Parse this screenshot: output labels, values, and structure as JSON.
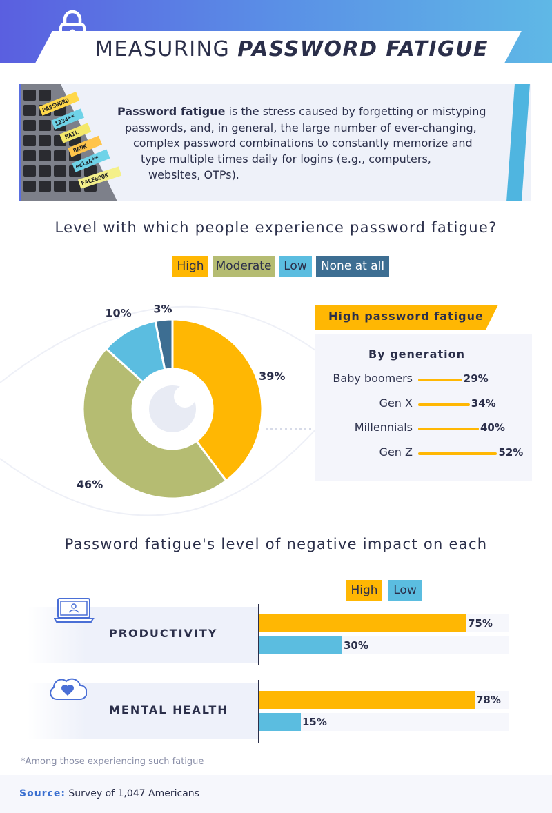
{
  "header": {
    "title_light": "MEASURING ",
    "title_bold": "PASSWORD FATIGUE"
  },
  "definition": {
    "term": "Password fatigue",
    "lines": [
      " is the stress caused by forgetting or mistyping",
      "passwords, and, in general, the large number of ever-changing,",
      "complex password combinations to constantly memorize and",
      "type multiple times daily for logins (e.g., computers,",
      "websites, OTPs)."
    ],
    "sticky_notes": [
      "PASSWORD",
      "1234**",
      "MAIL",
      "BANK",
      "eclx&**",
      "FACEBOOK"
    ]
  },
  "chart_data": [
    {
      "type": "pie",
      "title": "Level with which people experience password fatigue?",
      "categories": [
        "High",
        "Moderate",
        "Low",
        "None at all"
      ],
      "values": [
        39,
        46,
        10,
        3
      ],
      "value_labels": [
        "39%",
        "46%",
        "10%",
        "3%"
      ],
      "colors": [
        "#ffb703",
        "#b5bc72",
        "#5bbde0",
        "#3d6e92"
      ],
      "legend_placement": "top"
    },
    {
      "type": "bar",
      "title": "High password fatigue",
      "subtitle": "By generation",
      "categories": [
        "Baby boomers",
        "Gen X",
        "Millennials",
        "Gen Z"
      ],
      "values": [
        29,
        34,
        40,
        52
      ],
      "value_labels": [
        "29%",
        "34%",
        "40%",
        "52%"
      ],
      "color": "#ffb703"
    },
    {
      "type": "bar",
      "title": "Password fatigue's level of negative impact on each",
      "categories": [
        "PRODUCTIVITY",
        "MENTAL HEALTH"
      ],
      "series": [
        {
          "name": "High",
          "values": [
            75,
            78
          ],
          "value_labels": [
            "75%",
            "78%"
          ],
          "color": "#ffb703"
        },
        {
          "name": "Low",
          "values": [
            30,
            15
          ],
          "value_labels": [
            "30%",
            "15%"
          ],
          "color": "#5bbde0"
        }
      ],
      "xlim": [
        0,
        100
      ],
      "legend_placement": "top-right"
    }
  ],
  "icons": {
    "header": "lock-icon",
    "productivity": "laptop-icon",
    "mental_health": "heart-cloud-icon"
  },
  "footnote": "*Among those experiencing such fatigue",
  "source": {
    "label": "Source:",
    "text": " Survey of 1,047 Americans"
  }
}
